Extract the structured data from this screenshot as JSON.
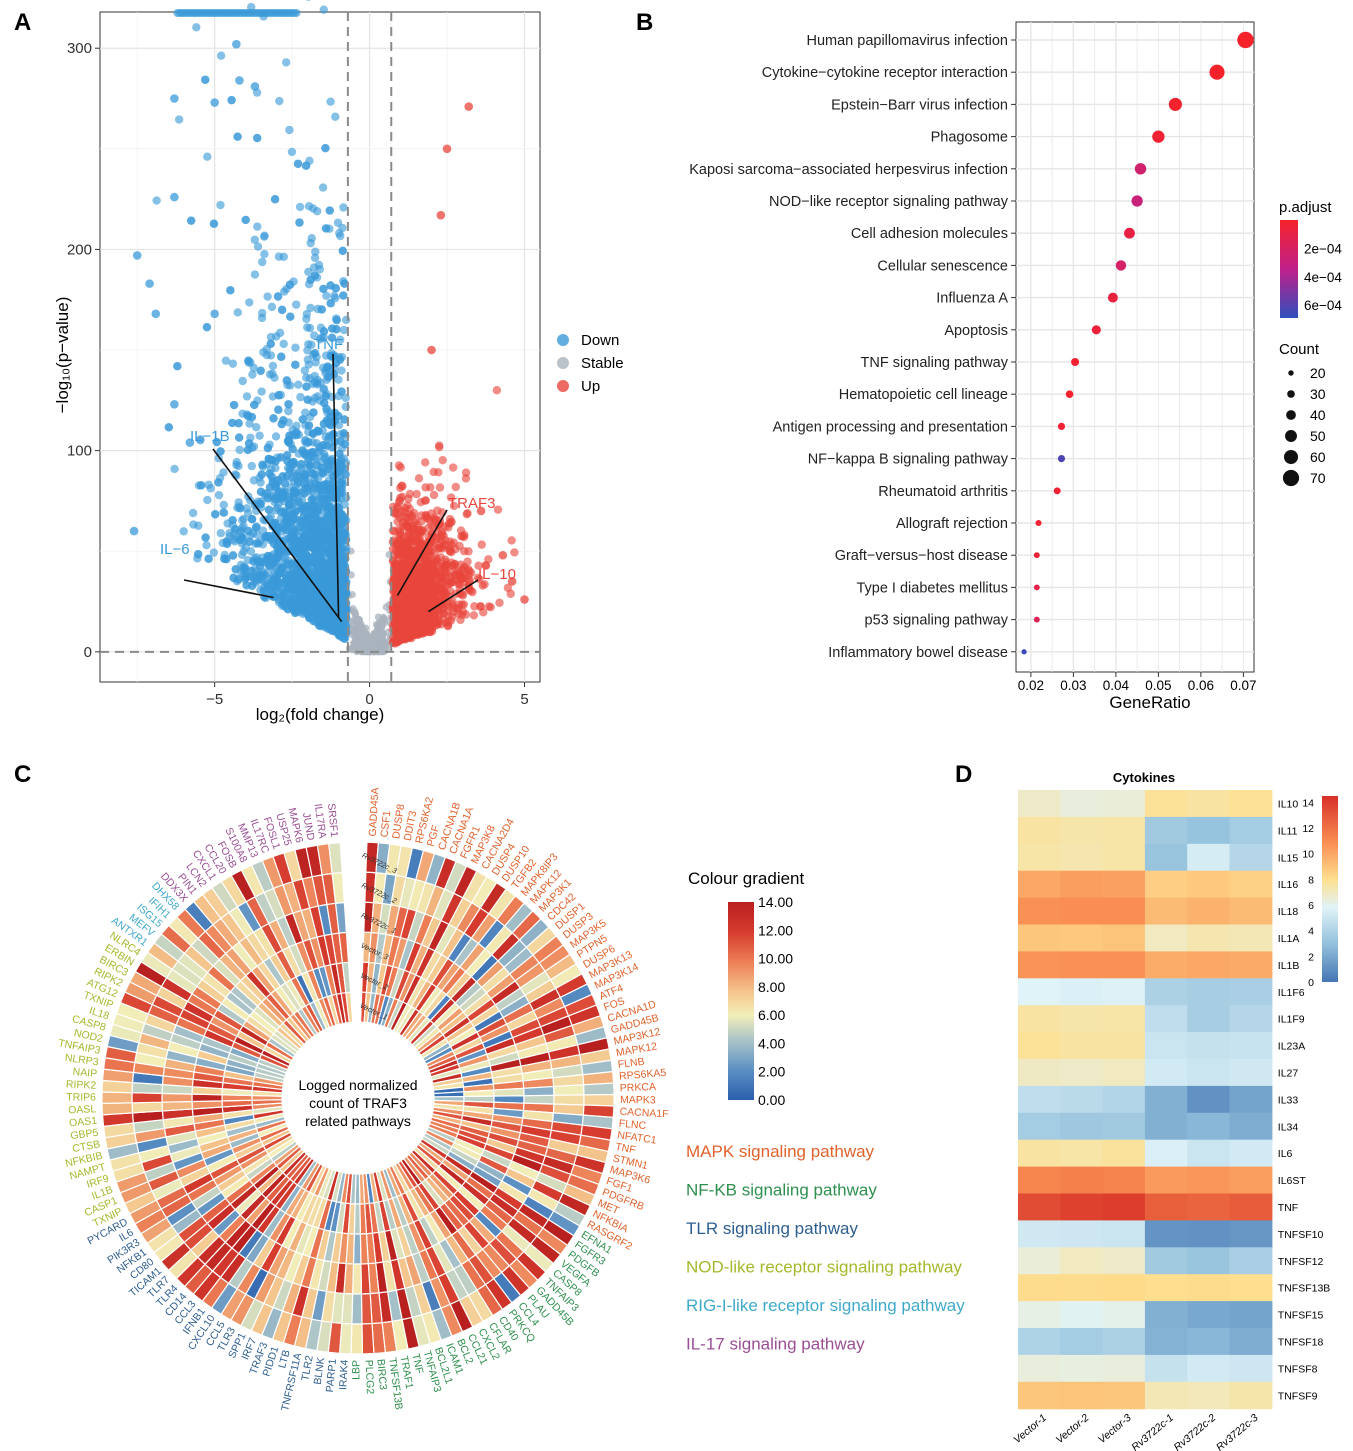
{
  "panel_labels": [
    "A",
    "B",
    "C",
    "D"
  ],
  "chart_data": [
    {
      "panel": "A",
      "type": "scatter",
      "title": "",
      "xlabel": "log₂(fold change)",
      "ylabel": "−log₁₀(p−value)",
      "xlim": [
        -8.7,
        5.5
      ],
      "ylim": [
        -15,
        318
      ],
      "x_ticks": [
        -5,
        0,
        5
      ],
      "y_ticks": [
        0,
        100,
        200,
        300
      ],
      "thresholds": {
        "fc": [
          -0.7,
          0.7
        ],
        "p": 0
      },
      "legend": [
        {
          "name": "Down",
          "color": "#3a9ad9"
        },
        {
          "name": "Stable",
          "color": "#a9b3bd"
        },
        {
          "name": "Up",
          "color": "#e8453c"
        }
      ],
      "highlight_points": [
        {
          "x": -7.5,
          "y": 197,
          "group": "Down"
        },
        {
          "x": -7.1,
          "y": 183,
          "group": "Down"
        },
        {
          "x": -6.9,
          "y": 168,
          "group": "Down"
        },
        {
          "x": -6.3,
          "y": 275,
          "group": "Down"
        },
        {
          "x": -6.3,
          "y": 226,
          "group": "Down"
        },
        {
          "x": -5.0,
          "y": 273,
          "group": "Down"
        },
        {
          "x": -4.3,
          "y": 302,
          "group": "Down"
        },
        {
          "x": -4.2,
          "y": 284,
          "group": "Down"
        },
        {
          "x": -3.7,
          "y": 281,
          "group": "Down"
        },
        {
          "x": -7.6,
          "y": 60,
          "group": "Down"
        },
        {
          "x": -6.3,
          "y": 123,
          "group": "Down"
        },
        {
          "x": -5.8,
          "y": 104,
          "group": "Down"
        },
        {
          "x": -5.0,
          "y": 168,
          "group": "Down"
        },
        {
          "x": 3.2,
          "y": 271,
          "group": "Up"
        },
        {
          "x": 2.5,
          "y": 250,
          "group": "Up"
        },
        {
          "x": 2.3,
          "y": 217,
          "group": "Up"
        },
        {
          "x": 2.0,
          "y": 150,
          "group": "Up"
        },
        {
          "x": 4.6,
          "y": 35,
          "group": "Up"
        },
        {
          "x": 5.0,
          "y": 26,
          "group": "Up"
        },
        {
          "x": 3.6,
          "y": 70,
          "group": "Up"
        },
        {
          "x": 4.3,
          "y": 48,
          "group": "Up"
        }
      ],
      "annotations": [
        {
          "label": "TNF",
          "x": -1.0,
          "y": 17,
          "group": "Down"
        },
        {
          "label": "IL−1B",
          "x": -0.9,
          "y": 15,
          "group": "Down"
        },
        {
          "label": "IL−6",
          "x": -3.1,
          "y": 27,
          "group": "Down"
        },
        {
          "label": "TRAF3",
          "x": 0.9,
          "y": 28,
          "group": "Up"
        },
        {
          "label": "IL−10",
          "x": 1.9,
          "y": 20,
          "group": "Up"
        }
      ]
    },
    {
      "panel": "B",
      "type": "scatter",
      "title": "",
      "xlabel": "GeneRatio",
      "ylabel": "",
      "xlim": [
        0.0165,
        0.0725
      ],
      "x_ticks": [
        0.02,
        0.03,
        0.04,
        0.05,
        0.06,
        0.07
      ],
      "x_tick_labels": [
        "0.02",
        "0.03",
        "0.04",
        "0.05",
        "0.06",
        "0.07"
      ],
      "categories": [
        "Human papillomavirus infection",
        "Cytokine−cytokine receptor interaction",
        "Epstein−Barr virus infection",
        "Phagosome",
        "Kaposi sarcoma−associated herpesvirus infection",
        "NOD−like receptor signaling pathway",
        "Cell adhesion molecules",
        "Cellular senescence",
        "Influenza A",
        "Apoptosis",
        "TNF signaling pathway",
        "Hematopoietic cell lineage",
        "Antigen processing and presentation",
        "NF−kappa B signaling pathway",
        "Rheumatoid arthritis",
        "Allograft rejection",
        "Graft−versus−host disease",
        "Type I diabetes mellitus",
        "p53 signaling pathway",
        "Inflammatory bowel disease"
      ],
      "gene_ratio": [
        0.0705,
        0.0638,
        0.054,
        0.05,
        0.0458,
        0.045,
        0.0432,
        0.0412,
        0.0393,
        0.0354,
        0.0304,
        0.0291,
        0.0272,
        0.0272,
        0.0262,
        0.0218,
        0.0214,
        0.0214,
        0.0214,
        0.0184
      ],
      "count": [
        71,
        65,
        56,
        52,
        48,
        47,
        45,
        43,
        41,
        37,
        32,
        30,
        28,
        28,
        27,
        23,
        22,
        22,
        22,
        19
      ],
      "p_adjust": [
        1e-08,
        1e-08,
        1e-05,
        3e-05,
        0.00022,
        0.00026,
        8e-05,
        0.00019,
        7e-05,
        5e-05,
        2e-05,
        1e-05,
        3e-05,
        0.00061,
        3e-05,
        3e-05,
        5e-05,
        0.0001,
        0.00014,
        0.00066
      ],
      "color_legend": {
        "title": "p.adjust",
        "labels": [
          "2e−04",
          "4e−04",
          "6e−04"
        ],
        "values": [
          0.0002,
          0.0004,
          0.0006
        ],
        "range": [
          0,
          0.00069
        ]
      },
      "size_legend": {
        "title": "Count",
        "values": [
          20,
          30,
          40,
          50,
          60,
          70
        ]
      }
    },
    {
      "panel": "C",
      "type": "heatmap",
      "title": "Logged normalized count of TRAF3 related pathways",
      "samples": [
        "Vector_1",
        "Vector_2",
        "Vector_3",
        "Rv3722c_1",
        "Rv3722c_2",
        "Rv3722c_3"
      ],
      "genes": [
        "GADD45A",
        "CSF1",
        "DUSP8",
        "DDIT3",
        "RPS6KA2",
        "PGF",
        "CACNA1B",
        "CACNA1A",
        "FGFR1",
        "MAP3K8",
        "CACNA2D4",
        "DUSP4",
        "DUSP10",
        "TGFB2",
        "MAPK8IP3",
        "MAPK12",
        "MAP3K1",
        "CDC42",
        "DUSP1",
        "DUSP3",
        "MAP3K5",
        "PTPN5",
        "DUSP6",
        "MAP3K13",
        "MAP3K14",
        "ATF4",
        "FOS",
        "CACNA1D",
        "GADD45B",
        "MAP3K12",
        "MAPK12",
        "FLNB",
        "RPS6KA5",
        "PRKCA",
        "MAPK3",
        "CACNA1F",
        "FLNC",
        "NFATC1",
        "TNF",
        "STMN1",
        "MAP3K6",
        "FGF1",
        "PDGFRB",
        "MET",
        "NFKBIA",
        "RASGRF2",
        "EFNA1",
        "FGFR3",
        "PDGFB",
        "VEGFA",
        "CASP8",
        "TNFAIP3",
        "GADD45B",
        "PLAU",
        "CCL4",
        "PRKCQ",
        "CD40",
        "CFLAR",
        "CXCL2",
        "CCL21",
        "BCL2",
        "ICAM1",
        "BCL2L1",
        "TNFAIP3",
        "TNF",
        "TRAF1",
        "TNFSF13B",
        "BIRC3",
        "PLCG2",
        "LBP",
        "IRAK4",
        "PARP1",
        "BLNK",
        "TLR2",
        "TNFRSF11A",
        "LTB",
        "PIDD1",
        "TRAF3",
        "IRF7",
        "SPP1",
        "TLR3",
        "CCL5",
        "CXCL10",
        "IFNB1",
        "CCL3",
        "CD14",
        "TLR4",
        "TLR7",
        "TICAM1",
        "CD80",
        "NFKB1",
        "PIK3R3",
        "IL6",
        "PYCARD",
        "TXNIP",
        "CASP1",
        "IL1B",
        "IRF9",
        "NAMPT",
        "NFKBIB",
        "CTSB",
        "GBP5",
        "OAS1",
        "OASL",
        "TRIP6",
        "RIPK2",
        "NAIP",
        "NLRP3",
        "TNFAIP3",
        "NOD2",
        "CASP8",
        "IL18",
        "TXNIP",
        "ATG12",
        "RIPK2",
        "BIRC3",
        "ERBIN",
        "NLRC4",
        "ANTXR1",
        "MEFV",
        "ISG15",
        "IFIH1",
        "DHX58",
        "DDX3X",
        "PIN1",
        "LCN2",
        "CXCL1",
        "CCL20",
        "FOSB",
        "S100A8",
        "MMP13",
        "IL17RC",
        "FOSL1",
        "USP25",
        "MAPK6",
        "JUND",
        "IL17RA",
        "SRSF1"
      ],
      "legend": {
        "title": "Colour gradient",
        "values": [
          14.0,
          12.0,
          10.0,
          8.0,
          6.0,
          4.0,
          2.0,
          0.0
        ],
        "labels": [
          "14.00",
          "12.00",
          "10.00",
          "8.00",
          "6.00",
          "4.00",
          "2.00",
          "0.00"
        ]
      },
      "pathways": [
        {
          "name": "MAPK signaling pathway",
          "color": "#e0622c"
        },
        {
          "name": "NF-KB signaling pathway",
          "color": "#2f8f4e"
        },
        {
          "name": "TLR signaling pathway",
          "color": "#2e5e8f"
        },
        {
          "name": "NOD-like receptor signaling pathway",
          "color": "#a7b72c"
        },
        {
          "name": "RIG-I-like receptor signaling pathway",
          "color": "#3fa9c9"
        },
        {
          "name": "IL-17 signaling pathway",
          "color": "#9a4f94"
        }
      ],
      "pathway_gene_counts": [
        46,
        24,
        24,
        24,
        5,
        14
      ]
    },
    {
      "panel": "D",
      "type": "heatmap",
      "title": "Cytokines",
      "columns": [
        "Vector-1",
        "Vector-2",
        "Vector-3",
        "Rv3722c-1",
        "Rv3722c-2",
        "Rv3722c-3"
      ],
      "rows": [
        "IL10",
        "IL11",
        "IL15",
        "IL16",
        "IL18",
        "IL1A",
        "IL1B",
        "IL1F6",
        "IL1F9",
        "IL23A",
        "IL27",
        "IL33",
        "IL34",
        "IL6",
        "IL6ST",
        "TNF",
        "TNFSF10",
        "TNFSF12",
        "TNFSF13B",
        "TNFSF15",
        "TNFSF18",
        "TNFSF8",
        "TNFSF9"
      ],
      "values": [
        [
          6.8,
          6.4,
          6.5,
          7.8,
          7.6,
          7.9
        ],
        [
          7.6,
          7.4,
          7.5,
          3.5,
          3.1,
          3.6
        ],
        [
          7.5,
          7.3,
          7.5,
          3.2,
          5.4,
          4.2
        ],
        [
          10.0,
          10.3,
          10.2,
          8.6,
          8.8,
          8.5
        ],
        [
          10.8,
          10.9,
          10.9,
          9.3,
          9.6,
          9.3
        ],
        [
          8.9,
          8.8,
          9.0,
          7.0,
          7.3,
          7.2
        ],
        [
          10.7,
          10.8,
          10.8,
          9.8,
          10.0,
          9.9
        ],
        [
          5.8,
          5.6,
          5.7,
          3.9,
          3.7,
          3.8
        ],
        [
          7.6,
          7.4,
          7.5,
          4.6,
          3.7,
          4.2
        ],
        [
          7.8,
          7.6,
          7.6,
          5.0,
          4.8,
          4.9
        ],
        [
          6.9,
          6.8,
          7.0,
          5.3,
          5.0,
          5.2
        ],
        [
          4.6,
          4.4,
          4.1,
          2.3,
          1.1,
          1.8
        ],
        [
          3.6,
          3.4,
          3.5,
          2.3,
          2.6,
          2.2
        ],
        [
          7.6,
          7.5,
          7.7,
          5.6,
          5.0,
          5.3
        ],
        [
          11.2,
          11.4,
          11.3,
          10.4,
          10.6,
          10.3
        ],
        [
          13.4,
          13.8,
          14.0,
          12.7,
          12.5,
          12.8
        ],
        [
          5.2,
          5.1,
          5.0,
          1.2,
          1.1,
          1.3
        ],
        [
          6.5,
          7.0,
          6.8,
          3.5,
          3.2,
          3.8
        ],
        [
          8.1,
          8.1,
          8.2,
          8.0,
          8.1,
          8.0
        ],
        [
          6.2,
          5.9,
          6.1,
          2.3,
          2.0,
          1.8
        ],
        [
          4.0,
          3.6,
          3.9,
          2.4,
          2.6,
          2.2
        ],
        [
          6.4,
          6.3,
          6.4,
          4.8,
          5.3,
          5.1
        ],
        [
          8.9,
          9.0,
          8.9,
          7.2,
          7.1,
          7.4
        ]
      ],
      "legend": {
        "ticks": [
          14,
          12,
          10,
          8,
          6,
          4,
          2,
          0
        ],
        "range": [
          0,
          14.5
        ]
      }
    }
  ]
}
